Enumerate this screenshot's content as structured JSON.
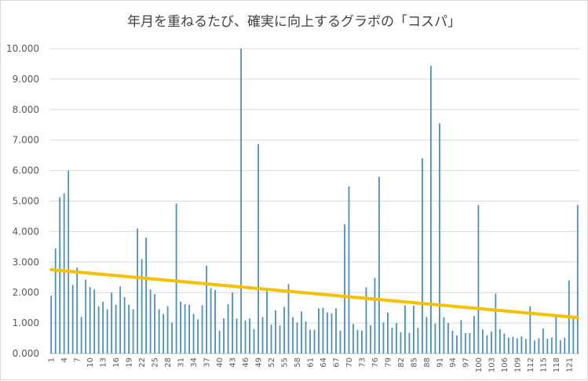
{
  "chart_data": {
    "type": "bar",
    "title": "年月を重ねるたび、確実に向上するグラボの「コスパ」",
    "ylim": [
      0,
      10000
    ],
    "yticks": [
      "0.000",
      "1.000",
      "2.000",
      "3.000",
      "4.000",
      "5.000",
      "6.000",
      "7.000",
      "8.000",
      "9.000",
      "10.000"
    ],
    "grid": true,
    "legend": "none",
    "bar_color": "#4a90b8",
    "trend_color": "#f5c000",
    "x_tick_labels": [
      "1",
      "4",
      "7",
      "10",
      "13",
      "16",
      "19",
      "22",
      "25",
      "28",
      "31",
      "34",
      "37",
      "40",
      "43",
      "46",
      "49",
      "52",
      "55",
      "58",
      "61",
      "64",
      "67",
      "70",
      "73",
      "76",
      "79",
      "82",
      "85",
      "88",
      "91",
      "94",
      "97",
      "100",
      "103",
      "106",
      "109",
      "112",
      "115",
      "118",
      "121"
    ],
    "trendline": {
      "start": 2750,
      "end": 1180
    },
    "x": [
      1,
      2,
      3,
      4,
      5,
      6,
      7,
      8,
      9,
      10,
      11,
      12,
      13,
      14,
      15,
      16,
      17,
      18,
      19,
      20,
      21,
      22,
      23,
      24,
      25,
      26,
      27,
      28,
      29,
      30,
      31,
      32,
      33,
      34,
      35,
      36,
      37,
      38,
      39,
      40,
      41,
      42,
      43,
      44,
      45,
      46,
      47,
      48,
      49,
      50,
      51,
      52,
      53,
      54,
      55,
      56,
      57,
      58,
      59,
      60,
      61,
      62,
      63,
      64,
      65,
      66,
      67,
      68,
      69,
      70,
      71,
      72,
      73,
      74,
      75,
      76,
      77,
      78,
      79,
      80,
      81,
      82,
      83,
      84,
      85,
      86,
      87,
      88,
      89,
      90,
      91,
      92,
      93,
      94,
      95,
      96,
      97,
      98,
      99,
      100,
      101,
      102,
      103,
      104,
      105,
      106,
      107,
      108,
      109,
      110,
      111,
      112,
      113,
      114,
      115,
      116,
      117,
      118,
      119,
      120,
      121,
      122,
      123
    ],
    "values": [
      1900,
      3450,
      5130,
      5250,
      6000,
      2250,
      2820,
      1200,
      2420,
      2180,
      2100,
      1550,
      1700,
      1450,
      2000,
      1600,
      2200,
      1850,
      1600,
      1450,
      4100,
      3100,
      3800,
      2100,
      1950,
      1450,
      1300,
      1550,
      1020,
      4920,
      1700,
      1620,
      1600,
      1300,
      1120,
      1580,
      2880,
      2150,
      2080,
      750,
      1150,
      1620,
      2000,
      1150,
      10000,
      1080,
      1150,
      800,
      6870,
      1200,
      2050,
      950,
      1420,
      920,
      1530,
      2280,
      1190,
      1020,
      1380,
      1050,
      780,
      780,
      1480,
      1500,
      1350,
      1320,
      1480,
      750,
      4240,
      5480,
      970,
      780,
      750,
      2170,
      930,
      2480,
      5800,
      1020,
      1350,
      850,
      1000,
      700,
      1580,
      680,
      1570,
      840,
      6400,
      1200,
      9430,
      980,
      7550,
      1190,
      1000,
      750,
      600,
      1100,
      670,
      670,
      1230,
      4870,
      790,
      600,
      720,
      1970,
      800,
      650,
      520,
      550,
      500,
      560,
      480,
      1550,
      430,
      500,
      820,
      490,
      530,
      1210,
      440,
      520,
      2400,
      1200,
      4870
    ]
  }
}
